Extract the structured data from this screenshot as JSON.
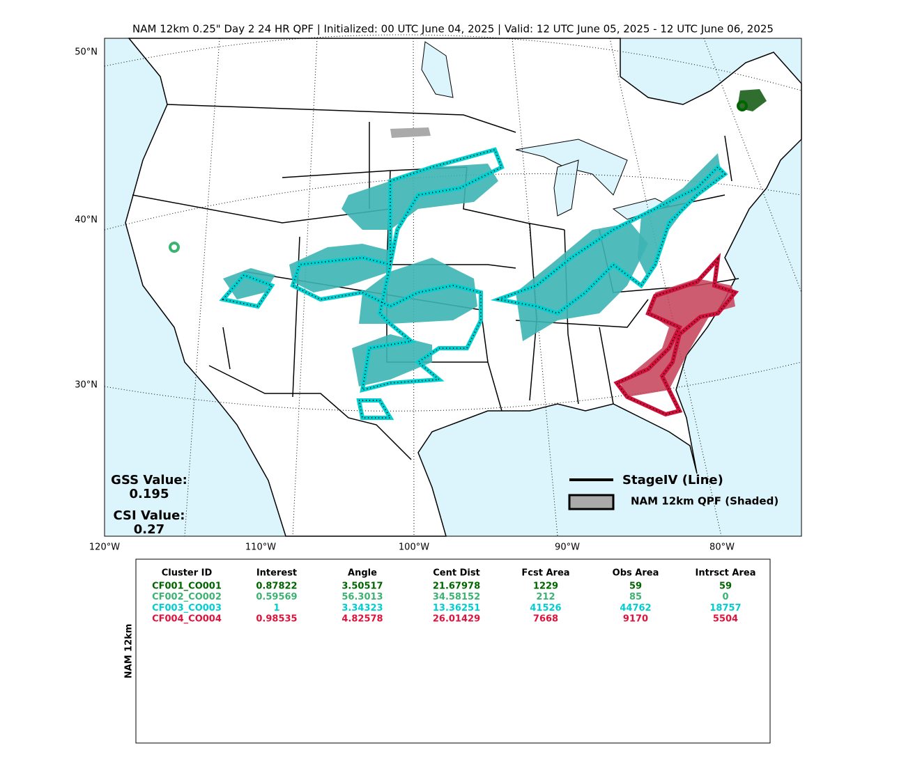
{
  "title": "NAM 12km 0.25\" Day 2 24 HR QPF | Initialized: 00 UTC June 04, 2025 | Valid: 12 UTC June 05, 2025 - 12 UTC June 06, 2025",
  "map": {
    "lat_labels": [
      "50°N",
      "40°N",
      "30°N"
    ],
    "lon_labels": [
      "120°W",
      "110°W",
      "100°W",
      "90°W",
      "80°W"
    ]
  },
  "scores": {
    "gss_label": "GSS Value:",
    "gss_value": "0.195",
    "csi_label": "CSI Value:",
    "csi_value": "0.27"
  },
  "legend": {
    "line": "StageIV (Line)",
    "shaded": "NAM 12km QPF (Shaded)"
  },
  "table": {
    "side_label": "NAM 12km",
    "headers": [
      "Cluster ID",
      "Interest",
      "Angle",
      "Cent Dist",
      "Fcst Area",
      "Obs Area",
      "Intrsct Area"
    ],
    "rows": [
      {
        "color": "#006400",
        "cells": [
          "CF001_CO001",
          "0.87822",
          "3.50517",
          "21.67978",
          "1229",
          "59",
          "59"
        ]
      },
      {
        "color": "#3cb371",
        "cells": [
          "CF002_CO002",
          "0.59569",
          "56.3013",
          "34.58152",
          "212",
          "85",
          "0"
        ]
      },
      {
        "color": "#00ced1",
        "cells": [
          "CF003_CO003",
          "1",
          "3.34323",
          "13.36251",
          "41526",
          "44762",
          "18757"
        ]
      },
      {
        "color": "#dc143c",
        "cells": [
          "CF004_CO004",
          "0.98535",
          "4.82578",
          "26.01429",
          "7668",
          "9170",
          "5504"
        ]
      }
    ]
  }
}
